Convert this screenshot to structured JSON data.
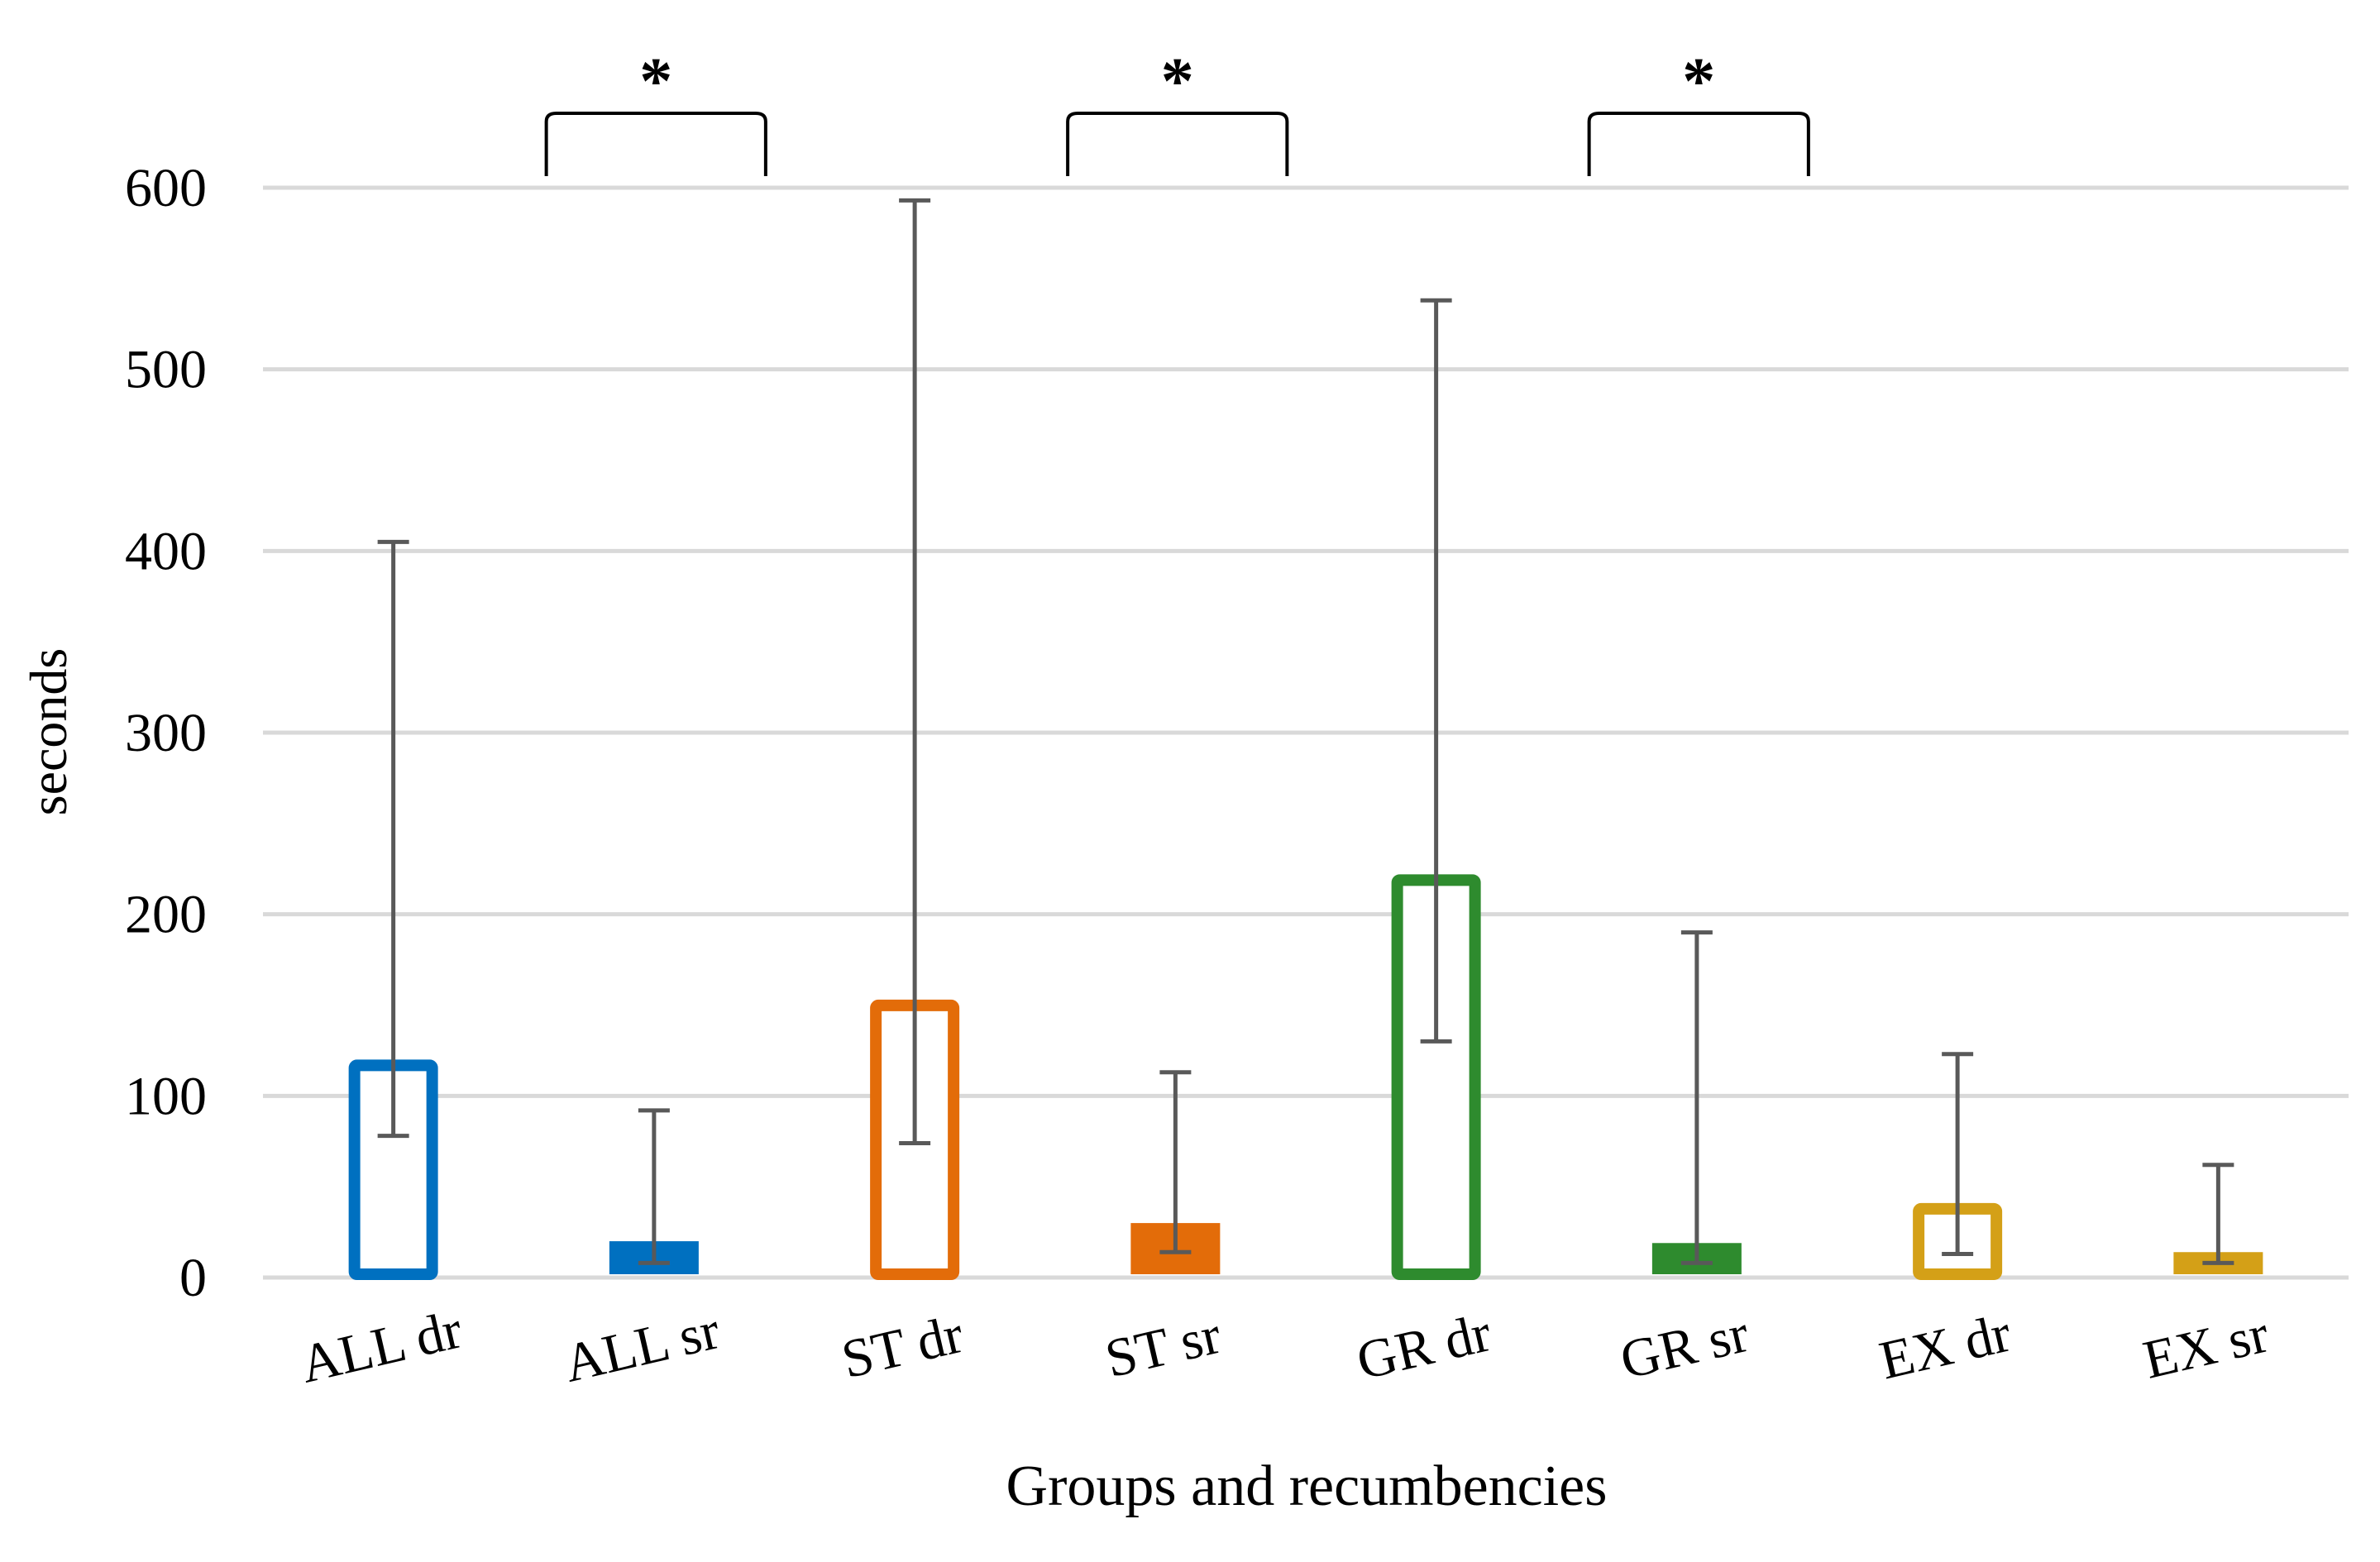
{
  "chart_data": {
    "type": "bar",
    "title": "",
    "xlabel": "Groups and recumbencies",
    "ylabel": "seconds",
    "ylim": [
      0,
      600
    ],
    "yticks": [
      0,
      100,
      200,
      300,
      400,
      500,
      600
    ],
    "grid": true,
    "categories": [
      "ALL dr",
      "ALL sr",
      "ST dr",
      "ST sr",
      "GR dr",
      "GR sr",
      "EX dr",
      "EX sr"
    ],
    "values": [
      120,
      20,
      153,
      30,
      222,
      19,
      41,
      14
    ],
    "error_low": [
      78,
      8,
      74,
      14,
      130,
      8,
      13,
      8
    ],
    "error_high": [
      405,
      92,
      593,
      113,
      538,
      190,
      123,
      62
    ],
    "styles": [
      "outline",
      "filled",
      "outline",
      "filled",
      "outline",
      "filled",
      "outline",
      "filled"
    ],
    "colors": [
      "#0070C0",
      "#0070C0",
      "#E36C09",
      "#E36C09",
      "#2E8B2E",
      "#2E8B2E",
      "#D4A017",
      "#D4A017"
    ],
    "significance": [
      {
        "from": "ALL dr",
        "to": "ALL sr",
        "label": "*"
      },
      {
        "from": "ST dr",
        "to": "ST sr",
        "label": "*"
      },
      {
        "from": "GR dr",
        "to": "GR sr",
        "label": "*"
      }
    ]
  }
}
